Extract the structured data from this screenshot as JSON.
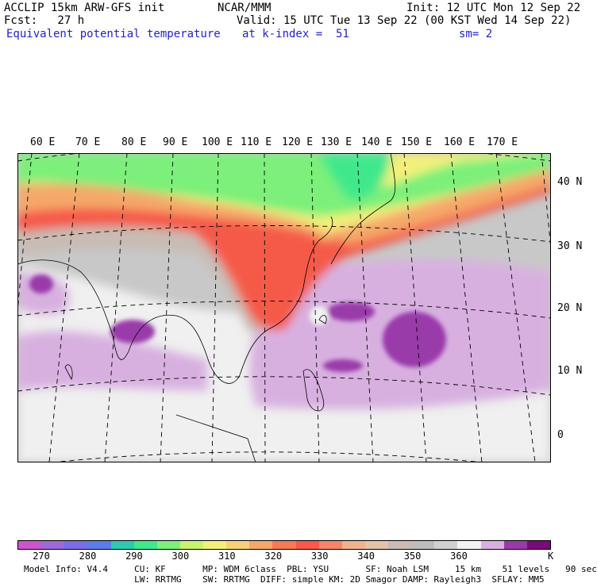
{
  "header": {
    "left1": "ACCLIP 15km ARW-GFS init",
    "center1": "NCAR/MMM",
    "right1": "Init: 12 UTC Mon 12 Sep 22",
    "left2": "Fcst:   27 h",
    "right2": "Valid: 15 UTC Tue 13 Sep 22 (00 KST Wed 14 Sep 22)",
    "field": "Equivalent potential temperature",
    "level": "at k-index =  51",
    "smooth": "sm= 2"
  },
  "map": {
    "lon_labels": [
      "60 E",
      "70 E",
      "80 E",
      "90 E",
      "100 E",
      "110 E",
      "120 E",
      "130 E",
      "140 E",
      "150 E",
      "160 E",
      "170 E"
    ],
    "lat_labels": [
      "40 N",
      "30 N",
      "20 N",
      "10 N",
      "0"
    ]
  },
  "colorbar": {
    "colors": [
      "#cc55cc",
      "#9a6ad6",
      "#7b6de6",
      "#5a7de8",
      "#2fc9b0",
      "#3fe88c",
      "#7cf07a",
      "#c8f272",
      "#f3f07a",
      "#f6d27a",
      "#f5a86a",
      "#f57a55",
      "#f55a4a",
      "#f5856a",
      "#f2b28f",
      "#e6c2ab",
      "#c8bcb4",
      "#bdbdbd",
      "#d0d0d0",
      "#f2f2f2",
      "#d8b0e0",
      "#9a3aaa",
      "#7a0a7a"
    ],
    "ticks": [
      "270",
      "280",
      "290",
      "300",
      "310",
      "320",
      "330",
      "340",
      "350",
      "360"
    ],
    "unit": "K",
    "legend_levels": [
      265,
      270,
      275,
      280,
      285,
      290,
      295,
      300,
      305,
      310,
      315,
      320,
      325,
      330,
      335,
      340,
      345,
      350,
      355,
      360,
      365,
      370,
      375
    ]
  },
  "model_info": {
    "line1": "Model Info: V4.4     CU: KF       MP: WDM 6class  PBL: YSU       SF: Noah LSM     15 km    51 levels   90 sec",
    "line2": "                     LW: RRTMG    SW: RRTMG  DIFF: simple KM: 2D Smagor DAMP: Rayleigh3  SFLAY: MM5"
  },
  "colors": {
    "title_blue": "#1f1fcf",
    "ocean_gray": "#c8c8c8",
    "tropical_purple": "#d8b0e0",
    "deep_purple": "#9a3aaa",
    "hot_red": "#f55a4a",
    "mid_green": "#3fe88c"
  }
}
